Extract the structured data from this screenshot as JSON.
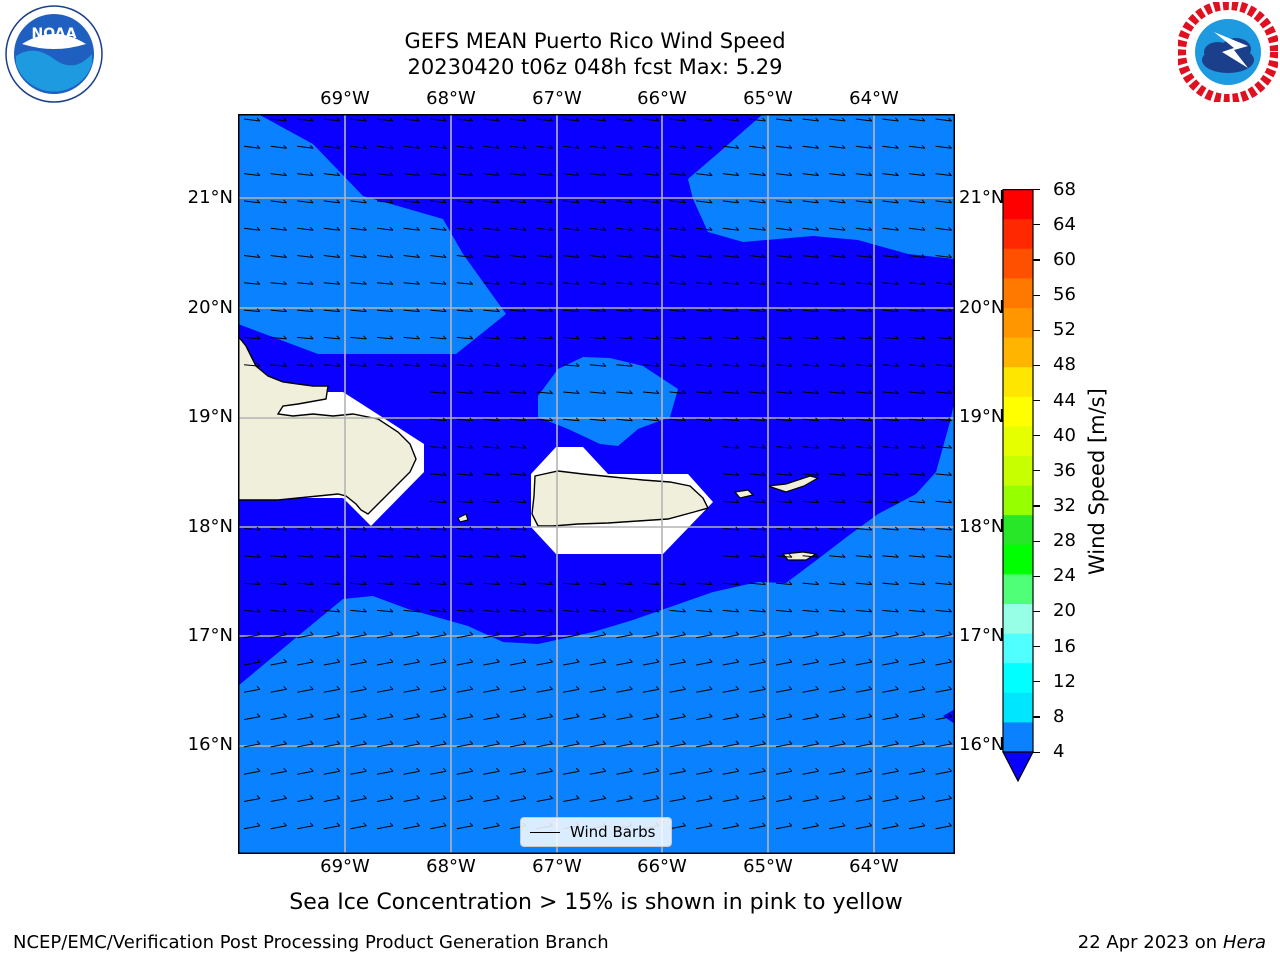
{
  "title": {
    "line1": "GEFS MEAN Puerto Rico Wind Speed",
    "line2": "20230420 t06z 048h fcst   Max: 5.29"
  },
  "logos": {
    "left": {
      "name": "noaa-logo",
      "text": "NOAA",
      "ring_text": "NATIONAL OCEANIC AND ATMOSPHERIC ADMINISTRATION · U.S. DEPARTMENT OF COMMERCE"
    },
    "right": {
      "name": "nws-logo",
      "ring_text": "NATIONAL WEATHER SERVICE"
    }
  },
  "map": {
    "lon_ticks": [
      "69°W",
      "68°W",
      "67°W",
      "66°W",
      "65°W",
      "64°W"
    ],
    "lat_ticks": [
      "21°N",
      "20°N",
      "19°N",
      "18°N",
      "17°N",
      "16°N"
    ],
    "colors": {
      "land": "#efefdc",
      "low": "#0a00ff",
      "band": "#0a82ff",
      "grid": "#b4b4b4"
    },
    "legend_label": "Wind Barbs"
  },
  "colorbar": {
    "label": "Wind Speed [m/s]",
    "ticks": [
      "68",
      "64",
      "60",
      "56",
      "52",
      "48",
      "44",
      "40",
      "36",
      "32",
      "28",
      "24",
      "20",
      "16",
      "12",
      "8",
      "4"
    ],
    "colors": [
      "#ff0000",
      "#ff2800",
      "#ff5000",
      "#ff7800",
      "#ff9600",
      "#ffb400",
      "#ffe600",
      "#ffff00",
      "#e6ff00",
      "#c8ff00",
      "#96ff00",
      "#28e628",
      "#00ff00",
      "#50ff78",
      "#96ffe6",
      "#50ffff",
      "#00ffff",
      "#00e6ff",
      "#0a82ff"
    ],
    "extend_color": "#0a00ff"
  },
  "note": "Sea Ice Concentration > 15% is shown in pink to yellow",
  "footer": {
    "left": "NCEP/EMC/Verification Post Processing Product Generation Branch",
    "right_date": "22 Apr 2023 on ",
    "right_host": "Hera"
  }
}
